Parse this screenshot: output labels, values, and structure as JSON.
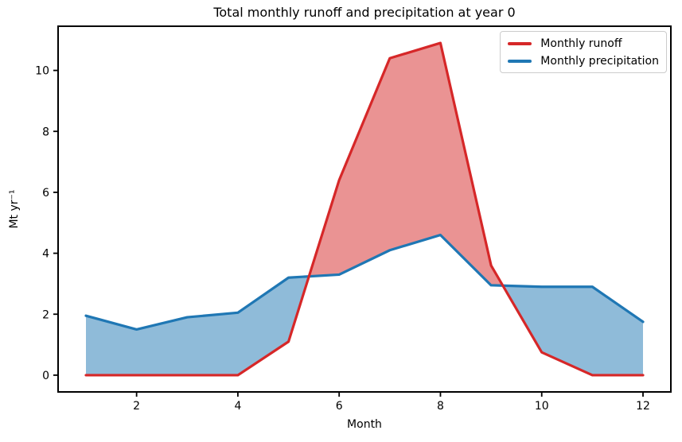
{
  "chart_data": {
    "type": "line",
    "title": "Total monthly runoff and precipitation at year 0",
    "xlabel": "Month",
    "ylabel": "Mt yr⁻¹",
    "x": [
      1,
      2,
      3,
      4,
      5,
      6,
      7,
      8,
      9,
      10,
      11,
      12
    ],
    "series": [
      {
        "name": "Monthly runoff",
        "color": "#d62728",
        "values": [
          0,
          0,
          0,
          0,
          1.1,
          6.4,
          10.4,
          10.9,
          3.6,
          0.75,
          0,
          0
        ]
      },
      {
        "name": "Monthly precipitation",
        "color": "#1f77b4",
        "values": [
          1.95,
          1.5,
          1.9,
          2.05,
          3.2,
          3.3,
          4.1,
          4.6,
          2.95,
          2.9,
          2.9,
          1.75
        ]
      }
    ],
    "fill_between_curves": true,
    "fill_alpha": 0.5,
    "xticks": [
      2,
      4,
      6,
      8,
      10,
      12
    ],
    "yticks": [
      0,
      2,
      4,
      6,
      8,
      10
    ],
    "xlim": [
      0.45,
      12.55
    ],
    "ylim": [
      -0.55,
      11.45
    ],
    "legend_position": "upper right",
    "grid": false,
    "axis_color": "#000000",
    "background": "#ffffff"
  }
}
